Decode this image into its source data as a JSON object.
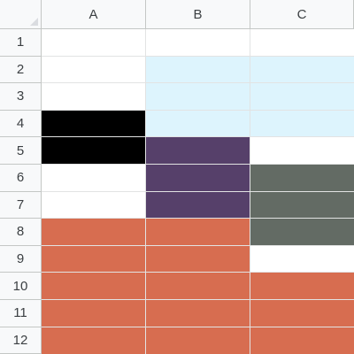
{
  "columns": [
    "A",
    "B",
    "C"
  ],
  "rows": [
    "1",
    "2",
    "3",
    "4",
    "5",
    "6",
    "7",
    "8",
    "9",
    "10",
    "11",
    "12"
  ],
  "colors": {
    "white": "#ffffff",
    "light_blue": "#ddf4fd",
    "black": "#000000",
    "purple": "#56406a",
    "gray": "#636b64",
    "orange": "#d76d50"
  },
  "cells": [
    [
      "white",
      "white",
      "white"
    ],
    [
      "white",
      "light_blue",
      "light_blue"
    ],
    [
      "white",
      "light_blue",
      "light_blue"
    ],
    [
      "black",
      "light_blue",
      "light_blue"
    ],
    [
      "black",
      "purple",
      "white"
    ],
    [
      "white",
      "purple",
      "gray"
    ],
    [
      "white",
      "purple",
      "gray"
    ],
    [
      "orange",
      "orange",
      "gray"
    ],
    [
      "orange",
      "orange",
      "white"
    ],
    [
      "orange",
      "orange",
      "orange"
    ],
    [
      "orange",
      "orange",
      "orange"
    ],
    [
      "orange",
      "orange",
      "orange"
    ]
  ]
}
